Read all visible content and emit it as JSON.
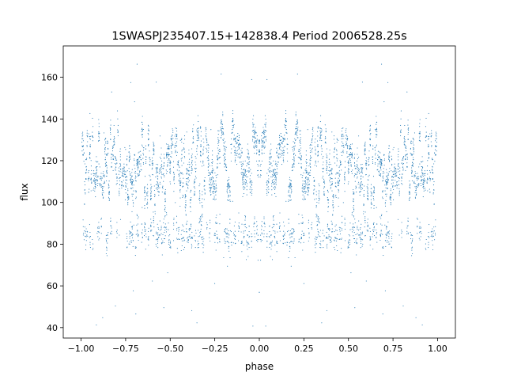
{
  "chart_data": {
    "type": "scatter",
    "title": "1SWASPJ235407.15+142838.4 Period 2006528.25s",
    "xlabel": "phase",
    "ylabel": "flux",
    "xlim": [
      -1.1,
      1.1
    ],
    "ylim": [
      35,
      175
    ],
    "xticks": [
      -1.0,
      -0.75,
      -0.5,
      -0.25,
      0.0,
      0.25,
      0.5,
      0.75,
      1.0
    ],
    "xtick_labels": [
      "−1.00",
      "−0.75",
      "−0.50",
      "−0.25",
      "0.00",
      "0.25",
      "0.50",
      "0.75",
      "1.00"
    ],
    "yticks": [
      40,
      60,
      80,
      100,
      120,
      140,
      160
    ],
    "ytick_labels": [
      "40",
      "60",
      "80",
      "100",
      "120",
      "140",
      "160"
    ],
    "grid": false,
    "legend": "none",
    "marker_color": "#1f77b4",
    "series": [
      {
        "x_range": [
          -1.0,
          1.0
        ],
        "symmetric_about_phase_zero": true,
        "upper_band_flux": [
          90,
          140
        ],
        "lower_band_flux": [
          75,
          95
        ],
        "outlier_flux_range": [
          40,
          167
        ],
        "sample_points": [
          {
            "x": -1.0,
            "y": 110
          },
          {
            "x": -0.98,
            "y": 137
          },
          {
            "x": -0.95,
            "y": 112
          },
          {
            "x": -0.9,
            "y": 105
          },
          {
            "x": -0.85,
            "y": 125
          },
          {
            "x": -0.8,
            "y": 86
          },
          {
            "x": -0.78,
            "y": 145
          },
          {
            "x": -0.75,
            "y": 100
          },
          {
            "x": -0.7,
            "y": 108
          },
          {
            "x": -0.6,
            "y": 135
          },
          {
            "x": -0.55,
            "y": 82
          },
          {
            "x": -0.5,
            "y": 105
          },
          {
            "x": -0.4,
            "y": 120
          },
          {
            "x": -0.3,
            "y": 98
          },
          {
            "x": -0.2,
            "y": 112
          },
          {
            "x": -0.1,
            "y": 125
          },
          {
            "x": 0.0,
            "y": 100
          },
          {
            "x": 0.1,
            "y": 125
          },
          {
            "x": 0.2,
            "y": 112
          },
          {
            "x": 0.22,
            "y": 145
          },
          {
            "x": 0.3,
            "y": 98
          },
          {
            "x": 0.4,
            "y": 120
          },
          {
            "x": 0.5,
            "y": 105
          },
          {
            "x": 0.55,
            "y": 82
          },
          {
            "x": 0.6,
            "y": 135
          },
          {
            "x": 0.7,
            "y": 108
          },
          {
            "x": 0.75,
            "y": 100
          },
          {
            "x": 0.8,
            "y": 86
          },
          {
            "x": 0.85,
            "y": 125
          },
          {
            "x": 0.9,
            "y": 105
          },
          {
            "x": 0.95,
            "y": 112
          },
          {
            "x": 0.98,
            "y": 137
          },
          {
            "x": 1.0,
            "y": 110
          }
        ]
      }
    ]
  }
}
